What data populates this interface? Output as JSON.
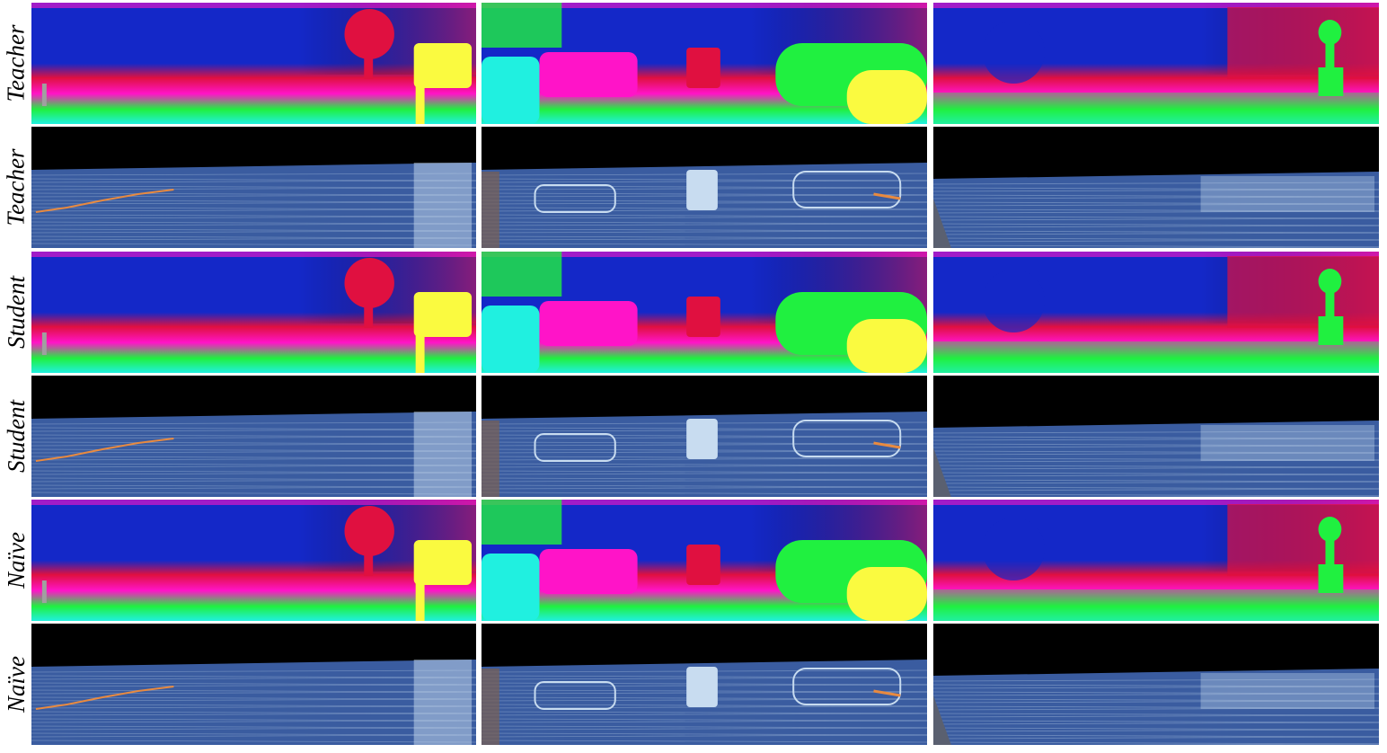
{
  "rows": [
    {
      "label": "Teacher",
      "kind": "flow"
    },
    {
      "label": "Teacher",
      "kind": "error"
    },
    {
      "label": "Student",
      "kind": "flow"
    },
    {
      "label": "Student",
      "kind": "error"
    },
    {
      "label": "Naïve",
      "kind": "flow"
    },
    {
      "label": "Naïve",
      "kind": "error"
    }
  ],
  "columns": 3,
  "colors": {
    "flow_blue": "#1428c8",
    "flow_red": "#e01040",
    "flow_magenta": "#ff14c8",
    "flow_green": "#20f040",
    "flow_yellow": "#fafa40",
    "flow_cyan": "#20f0e0",
    "error_blue": "#3a5ca0",
    "error_light": "#c8dcf0",
    "error_orange": "#e88a40",
    "error_black": "#000000"
  }
}
